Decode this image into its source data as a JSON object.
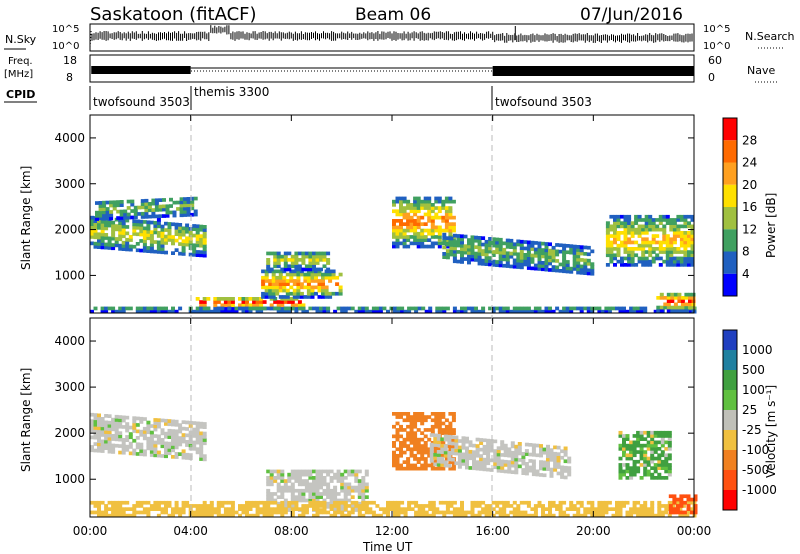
{
  "header": {
    "station": "Saskatoon (fitACF)",
    "beam": "Beam 06",
    "date": "07/Jun/2016"
  },
  "noise_panel": {
    "left_label": "N.Sky",
    "right_label": "N.Search",
    "ticks_left": [
      "10^5",
      "10^0"
    ],
    "ticks_right": [
      "10^5",
      "10^0"
    ]
  },
  "freq_panel": {
    "left_label_1": "Freq.",
    "left_label_2": "[MHz]",
    "right_label": "Nave",
    "ticks_left": [
      "18",
      "8"
    ],
    "ticks_right": [
      "60",
      "0"
    ]
  },
  "cpid": {
    "label": "CPID",
    "segments": [
      {
        "name": "twofsound 3503",
        "start_hour": 0,
        "end_hour": 4
      },
      {
        "name": "themis 3300",
        "start_hour": 4,
        "end_hour": 16
      },
      {
        "name": "twofsound 3503",
        "start_hour": 16,
        "end_hour": 24
      }
    ]
  },
  "power_panel": {
    "ylabel": "Slant Range [km]",
    "colorbar_label": "Power [dB]",
    "colorbar_ticks": [
      "28",
      "24",
      "20",
      "16",
      "12",
      "8",
      "4"
    ],
    "colors": [
      "#ff0000",
      "#ff6a00",
      "#ffa020",
      "#ffe000",
      "#a0c040",
      "#40a060",
      "#2060c0",
      "#0000ff"
    ]
  },
  "velocity_panel": {
    "ylabel": "Slant Range [km]",
    "colorbar_label": "Velocity [m s⁻¹]",
    "colorbar_ticks": [
      "1000",
      "500",
      "100",
      "25",
      "-25",
      "-100",
      "-500",
      "-1000"
    ],
    "colors": [
      "#2040c0",
      "#2080a0",
      "#40a040",
      "#60c040",
      "#c0c0b8",
      "#f0c040",
      "#f08020",
      "#ff5010",
      "#ff0000"
    ],
    "ground_color": "#c4c4c0"
  },
  "x_axis": {
    "label": "Time UT",
    "ticks": [
      "00:00",
      "04:00",
      "08:00",
      "12:00",
      "16:00",
      "20:00",
      "00:00"
    ]
  },
  "chart_data": {
    "type": "heatmap",
    "title": "Saskatoon (fitACF)",
    "subtitle": "Beam 06",
    "date": "07/Jun/2016",
    "xlabel": "Time UT",
    "ylabel": "Slant Range [km]",
    "xlim": [
      0,
      24
    ],
    "ylim": [
      180,
      4500
    ],
    "yticks": [
      1000,
      2000,
      3000,
      4000
    ],
    "mode_changes_hour": [
      4,
      16
    ],
    "power_scale_db": [
      4,
      8,
      12,
      16,
      20,
      24,
      28
    ],
    "velocity_scale_ms": [
      -1000,
      -500,
      -100,
      -25,
      25,
      100,
      500,
      1000
    ],
    "power_bands": [
      {
        "t0": 0.0,
        "t1": 4.5,
        "r0": 1600,
        "r1": 2300,
        "level": 3,
        "slope": -200
      },
      {
        "t0": 0.2,
        "t1": 4.2,
        "r0": 2200,
        "r1": 2600,
        "level": 2,
        "slope": 100
      },
      {
        "t0": 4.2,
        "t1": 8.5,
        "r0": 250,
        "r1": 500,
        "level": 7,
        "slope": 0
      },
      {
        "t0": 6.8,
        "t1": 10.0,
        "r0": 500,
        "r1": 1100,
        "level": 5,
        "slope": 0
      },
      {
        "t0": 7.0,
        "t1": 9.5,
        "r0": 1100,
        "r1": 1500,
        "level": 3,
        "slope": 0
      },
      {
        "t0": 12.0,
        "t1": 14.5,
        "r0": 1600,
        "r1": 2700,
        "level": 5,
        "slope": 0
      },
      {
        "t0": 14.0,
        "t1": 20.0,
        "r0": 1300,
        "r1": 1900,
        "level": 2,
        "slope": -300
      },
      {
        "t0": 20.5,
        "t1": 24.0,
        "r0": 1200,
        "r1": 2300,
        "level": 4,
        "slope": 0
      },
      {
        "t0": 0.0,
        "t1": 24.0,
        "r0": 180,
        "r1": 320,
        "level": 1,
        "slope": 0
      },
      {
        "t0": 22.5,
        "t1": 24.0,
        "r0": 200,
        "r1": 600,
        "level": 6,
        "slope": 0
      }
    ],
    "velocity_bands": [
      {
        "t0": 0.0,
        "t1": 4.5,
        "r0": 1600,
        "r1": 2400,
        "vel": 0,
        "slope": -200
      },
      {
        "t0": 7.0,
        "t1": 11.0,
        "r0": 300,
        "r1": 1200,
        "vel": 0,
        "slope": 0
      },
      {
        "t0": 12.0,
        "t1": 14.5,
        "r0": 1200,
        "r1": 2400,
        "vel": -300,
        "slope": 0
      },
      {
        "t0": 13.5,
        "t1": 19.0,
        "r0": 1300,
        "r1": 2000,
        "vel": 0,
        "slope": -300
      },
      {
        "t0": 21.0,
        "t1": 23.0,
        "r0": 1000,
        "r1": 2000,
        "vel": 150,
        "slope": 0
      },
      {
        "t0": 0.0,
        "t1": 24.0,
        "r0": 180,
        "r1": 500,
        "vel": -60,
        "slope": 0
      },
      {
        "t0": 23.0,
        "t1": 24.0,
        "r0": 250,
        "r1": 650,
        "vel": -700,
        "slope": 0
      }
    ]
  }
}
